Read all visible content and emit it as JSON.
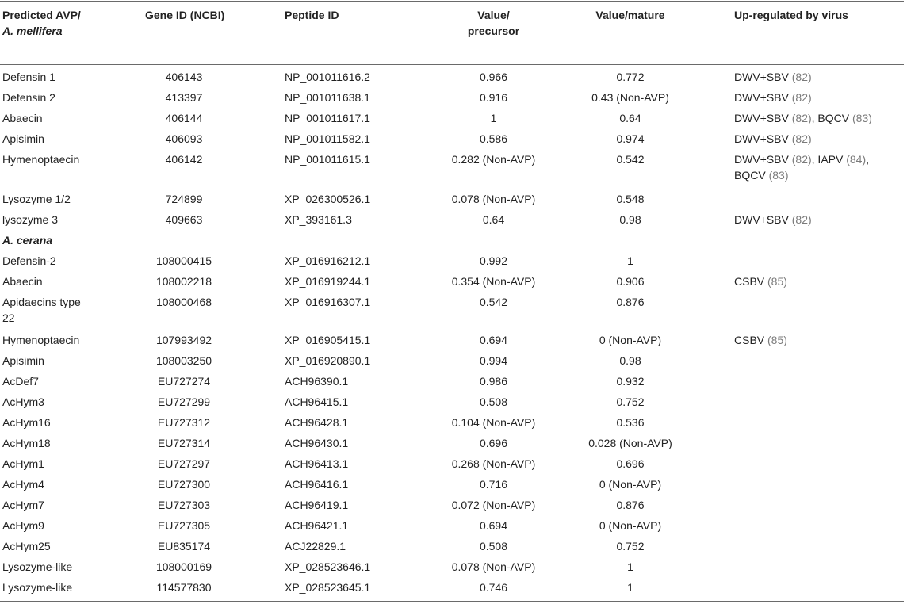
{
  "table": {
    "headers": {
      "col1_line1": "Predicted AVP/",
      "col1_line2": "A. mellifera",
      "gene": "Gene ID (NCBI)",
      "peptide": "Peptide ID",
      "value_precursor_line1": "Value/",
      "value_precursor_line2": "precursor",
      "value_mature": "Value/mature",
      "virus": "Up-regulated by virus"
    },
    "section_cerana": "A. cerana",
    "rows": [
      {
        "name": "Defensin 1",
        "gene": "406143",
        "peptide": "NP_001011616.2",
        "v1": "0.966",
        "v2": "0.772",
        "virus": [
          {
            "t": "DWV+SBV "
          },
          {
            "r": "(82)"
          }
        ]
      },
      {
        "name": "Defensin 2",
        "gene": "413397",
        "peptide": "NP_001011638.1",
        "v1": "0.916",
        "v2": "0.43 (Non-AVP)",
        "virus": [
          {
            "t": "DWV+SBV "
          },
          {
            "r": "(82)"
          }
        ]
      },
      {
        "name": "Abaecin",
        "gene": "406144",
        "peptide": "NP_001011617.1",
        "v1": "1",
        "v2": "0.64",
        "virus": [
          {
            "t": "DWV+SBV "
          },
          {
            "r": "(82)"
          },
          {
            "t": ", BQCV "
          },
          {
            "r": "(83)"
          }
        ]
      },
      {
        "name": "Apisimin",
        "gene": "406093",
        "peptide": "NP_001011582.1",
        "v1": "0.586",
        "v2": "0.974",
        "virus": [
          {
            "t": "DWV+SBV "
          },
          {
            "r": "(82)"
          }
        ]
      },
      {
        "name": "Hymenoptaecin",
        "gene": "406142",
        "peptide": "NP_001011615.1",
        "v1": "0.282 (Non-AVP)",
        "v2": "0.542",
        "virus": [
          {
            "t": "DWV+SBV "
          },
          {
            "r": "(82)"
          },
          {
            "t": ", IAPV "
          },
          {
            "r": "(84)"
          },
          {
            "t": ","
          }
        ],
        "virus_line2": [
          {
            "t": "BQCV "
          },
          {
            "r": "(83)"
          }
        ]
      },
      {
        "name": "Lysozyme 1/2",
        "gene": "724899",
        "peptide": "XP_026300526.1",
        "v1": "0.078 (Non-AVP)",
        "v2": "0.548",
        "virus": []
      },
      {
        "name": "lysozyme 3",
        "gene": "409663",
        "peptide": "XP_393161.3",
        "v1": "0.64",
        "v2": "0.98",
        "virus": [
          {
            "t": "DWV+SBV "
          },
          {
            "r": "(82)"
          }
        ]
      },
      {
        "name": "Defensin-2",
        "gene": "108000415",
        "peptide": "XP_016916212.1",
        "v1": "0.992",
        "v2": "1",
        "virus": []
      },
      {
        "name": "Abaecin",
        "gene": "108002218",
        "peptide": "XP_016919244.1",
        "v1": "0.354 (Non-AVP)",
        "v2": "0.906",
        "virus": [
          {
            "t": "CSBV "
          },
          {
            "r": "(85)"
          }
        ]
      },
      {
        "name": "Apidaecins type",
        "name_line2": "22",
        "gene": "108000468",
        "peptide": "XP_016916307.1",
        "v1": "0.542",
        "v2": "0.876",
        "virus": []
      },
      {
        "name": "Hymenoptaecin",
        "gene": "107993492",
        "peptide": "XP_016905415.1",
        "v1": "0.694",
        "v2": "0 (Non-AVP)",
        "virus": [
          {
            "t": "CSBV "
          },
          {
            "r": "(85)"
          }
        ]
      },
      {
        "name": "Apisimin",
        "gene": "108003250",
        "peptide": "XP_016920890.1",
        "v1": "0.994",
        "v2": "0.98",
        "virus": []
      },
      {
        "name": "AcDef7",
        "gene": "EU727274",
        "peptide": "ACH96390.1",
        "v1": "0.986",
        "v2": "0.932",
        "virus": []
      },
      {
        "name": "AcHym3",
        "gene": "EU727299",
        "peptide": "ACH96415.1",
        "v1": "0.508",
        "v2": "0.752",
        "virus": []
      },
      {
        "name": "AcHym16",
        "gene": "EU727312",
        "peptide": "ACH96428.1",
        "v1": "0.104 (Non-AVP)",
        "v2": "0.536",
        "virus": []
      },
      {
        "name": "AcHym18",
        "gene": "EU727314",
        "peptide": "ACH96430.1",
        "v1": "0.696",
        "v2": "0.028 (Non-AVP)",
        "virus": []
      },
      {
        "name": "AcHym1",
        "gene": "EU727297",
        "peptide": "ACH96413.1",
        "v1": "0.268 (Non-AVP)",
        "v2": "0.696",
        "virus": []
      },
      {
        "name": "AcHym4",
        "gene": "EU727300",
        "peptide": "ACH96416.1",
        "v1": "0.716",
        "v2": "0 (Non-AVP)",
        "virus": []
      },
      {
        "name": "AcHym7",
        "gene": "EU727303",
        "peptide": "ACH96419.1",
        "v1": "0.072 (Non-AVP)",
        "v2": "0.876",
        "virus": []
      },
      {
        "name": "AcHym9",
        "gene": "EU727305",
        "peptide": "ACH96421.1",
        "v1": "0.694",
        "v2": "0 (Non-AVP)",
        "virus": []
      },
      {
        "name": "AcHym25",
        "gene": "EU835174",
        "peptide": "ACJ22829.1",
        "v1": "0.508",
        "v2": "0.752",
        "virus": []
      },
      {
        "name": "Lysozyme-like",
        "gene": "108000169",
        "peptide": "XP_028523646.1",
        "v1": "0.078 (Non-AVP)",
        "v2": "1",
        "virus": []
      },
      {
        "name": "Lysozyme-like",
        "gene": "114577830",
        "peptide": "XP_028523645.1",
        "v1": "0.746",
        "v2": "1",
        "virus": []
      }
    ]
  }
}
